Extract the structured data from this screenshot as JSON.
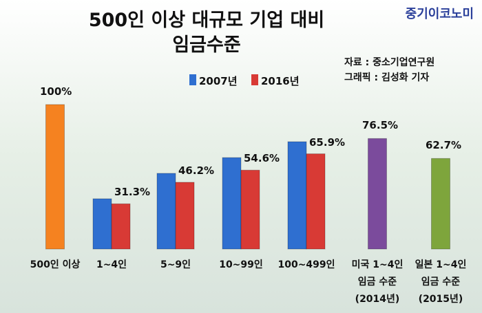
{
  "logo": "중기이코노미",
  "source": "자료 : 중소기업연구원",
  "credit": "그래픽 : 김성화 기자",
  "chart_data": {
    "type": "bar",
    "title": "500인 이상 대규모 기업 대비\n임금수준",
    "categories": [
      "500인 이상",
      "1~4인",
      "5~9인",
      "10~99인",
      "100~499인",
      "미국 1~4인\n임금 수준\n(2014년)",
      "일본 1~4인\n임금 수준\n(2015년)"
    ],
    "series": [
      {
        "name": "2007년",
        "color": "#2f6fd0",
        "values": [
          null,
          34.8,
          52.4,
          63.3,
          74.3,
          null,
          null
        ]
      },
      {
        "name": "2016년",
        "color": "#d83a35",
        "values": [
          null,
          31.3,
          46.2,
          54.6,
          65.9,
          null,
          null
        ],
        "value_labels": [
          null,
          "31.3%",
          "46.2%",
          "54.6%",
          "65.9%",
          null,
          null
        ]
      }
    ],
    "single_values": [
      100,
      null,
      null,
      null,
      null,
      76.5,
      62.7
    ],
    "single_value_labels": [
      "100%",
      null,
      null,
      null,
      null,
      "76.5%",
      "62.7%"
    ],
    "single_colors": [
      "#f58220",
      null,
      null,
      null,
      null,
      "#7b4b9c",
      "#7ea53c"
    ],
    "ylim": [
      0,
      100
    ]
  }
}
